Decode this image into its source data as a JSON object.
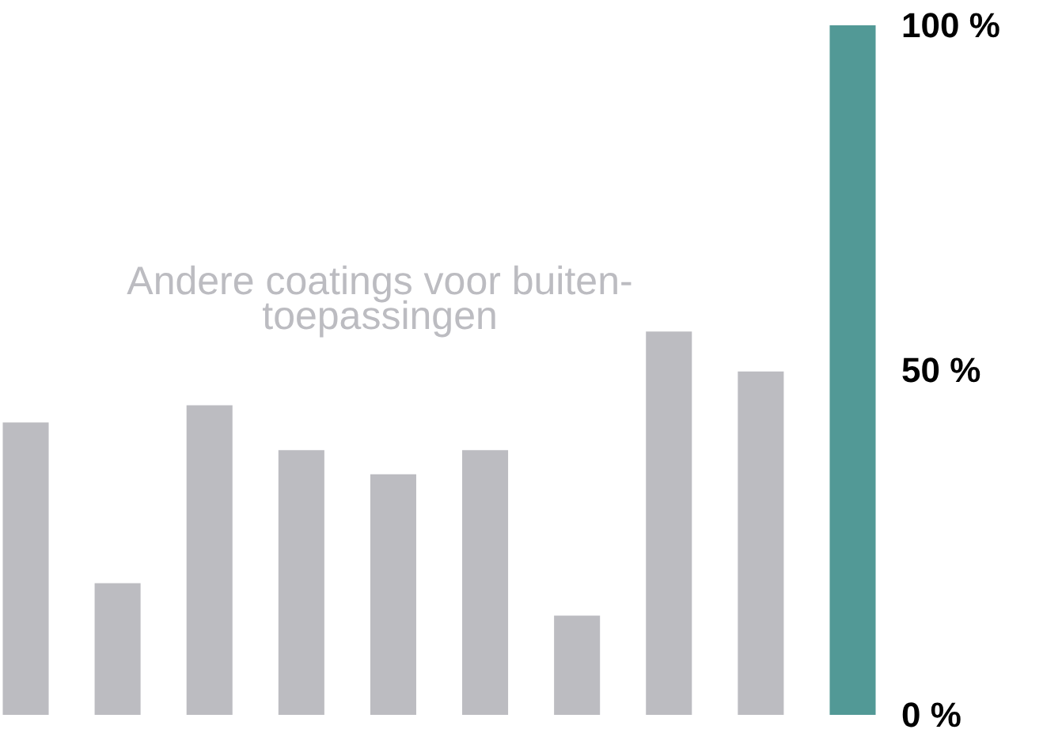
{
  "chart_data": {
    "type": "bar",
    "categories": [
      null,
      null,
      null,
      null,
      null,
      null,
      null,
      null,
      null,
      null
    ],
    "values": [
      42.4,
      19.1,
      44.9,
      38.4,
      34.9,
      38.4,
      14.4,
      55.6,
      49.8,
      100
    ],
    "colors": [
      "#bcbcc1",
      "#bcbcc1",
      "#bcbcc1",
      "#bcbcc1",
      "#bcbcc1",
      "#bcbcc1",
      "#bcbcc1",
      "#bcbcc1",
      "#bcbcc1",
      "#529996"
    ],
    "ylim": [
      0,
      100
    ],
    "yticks": [
      {
        "value": 0,
        "label": "0 %"
      },
      {
        "value": 50,
        "label": "50 %"
      },
      {
        "value": 100,
        "label": "100 %"
      }
    ],
    "annotations": [
      "Andere coatings voor buiten-\ntoepassingen"
    ],
    "grid": false
  }
}
